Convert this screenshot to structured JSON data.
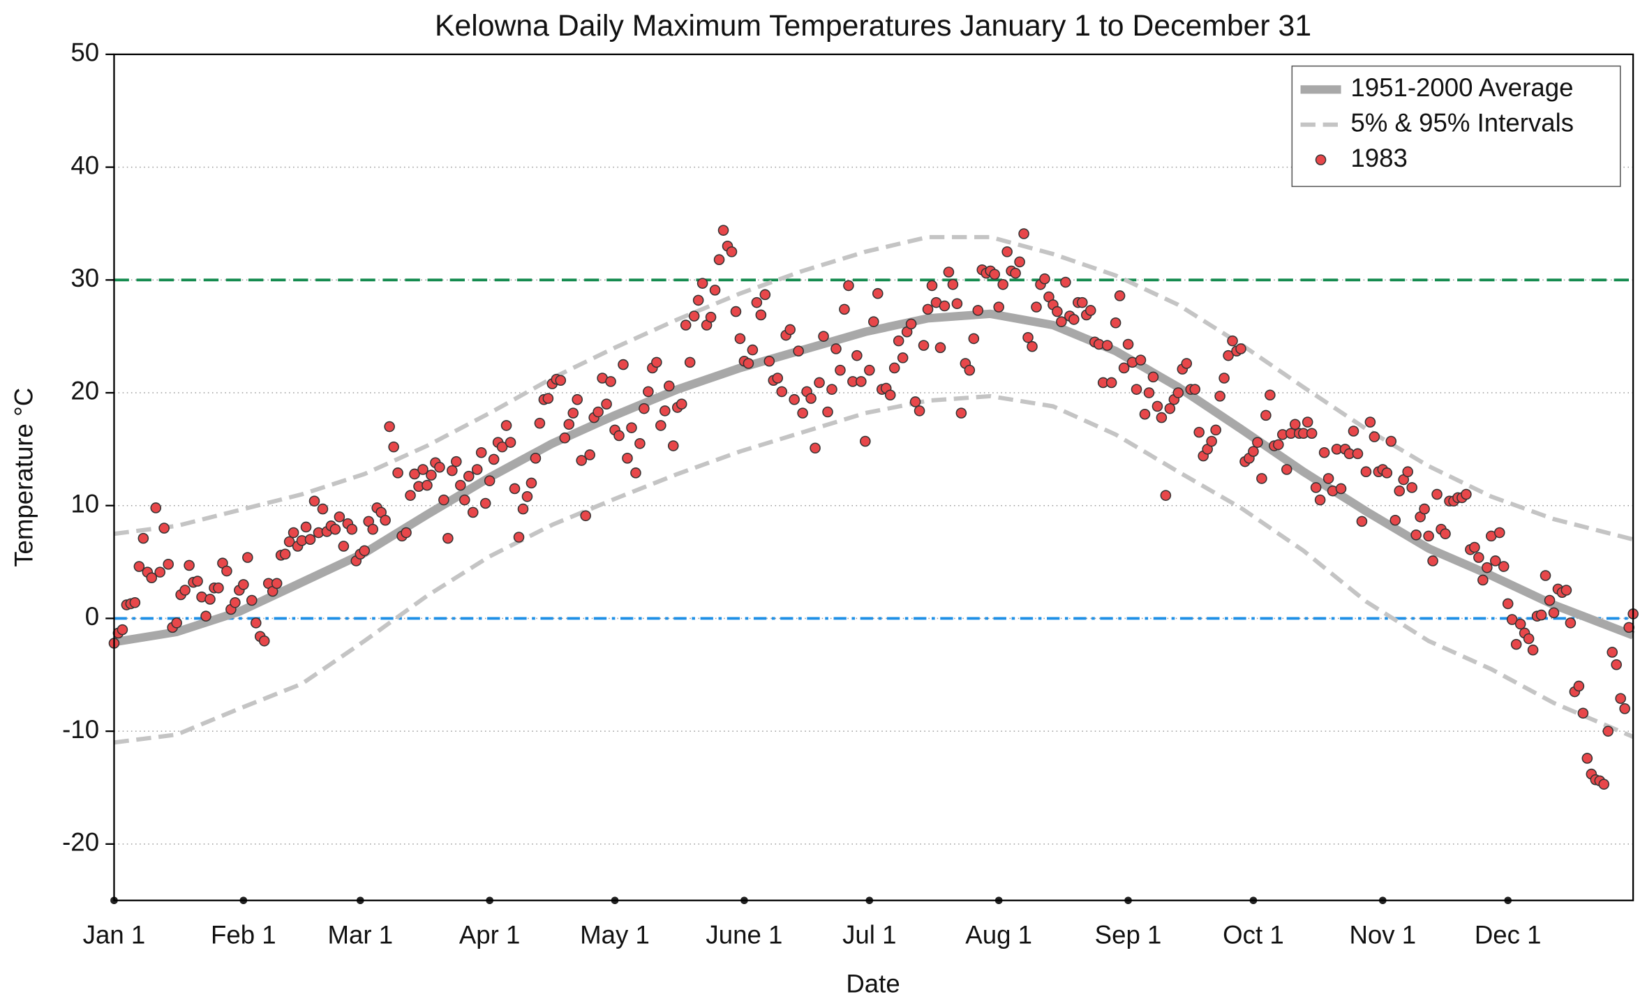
{
  "chart_data": {
    "type": "line",
    "title": "Kelowna Daily Maximum Temperatures January 1 to December 31",
    "xlabel": "Date",
    "ylabel": "Temperature °C",
    "xlim": [
      1,
      365
    ],
    "ylim": [
      -25,
      50
    ],
    "xticks": [
      {
        "value": 1,
        "label": "Jan 1"
      },
      {
        "value": 32,
        "label": "Feb 1"
      },
      {
        "value": 60,
        "label": "Mar 1"
      },
      {
        "value": 91,
        "label": "Apr 1"
      },
      {
        "value": 121,
        "label": "May 1"
      },
      {
        "value": 152,
        "label": "June 1"
      },
      {
        "value": 182,
        "label": "Jul 1"
      },
      {
        "value": 213,
        "label": "Aug 1"
      },
      {
        "value": 244,
        "label": "Sep 1"
      },
      {
        "value": 274,
        "label": "Oct 1"
      },
      {
        "value": 305,
        "label": "Nov 1"
      },
      {
        "value": 335,
        "label": "Dec 1"
      }
    ],
    "yticks": [
      -20,
      -10,
      0,
      10,
      20,
      30,
      40,
      50
    ],
    "grid": true,
    "legend": "upper right",
    "hlines": [
      {
        "value": 30,
        "color": "#138a4e",
        "style": "dashed"
      },
      {
        "value": 0,
        "color": "#1e8fe6",
        "style": "dashdot"
      }
    ],
    "series": [
      {
        "name": "1951-2000 Average",
        "color": "#a8a8a8",
        "style": "solid",
        "x": [
          1,
          16,
          31,
          46,
          61,
          76,
          91,
          106,
          121,
          136,
          151,
          166,
          181,
          196,
          211,
          226,
          241,
          256,
          271,
          286,
          301,
          316,
          331,
          346,
          365
        ],
        "values": [
          -2.1,
          -1.2,
          0.6,
          3.2,
          5.8,
          9.2,
          12.5,
          15.5,
          18,
          20.3,
          22.2,
          23.8,
          25.4,
          26.6,
          27,
          26,
          23.7,
          20.5,
          16.8,
          13,
          9.5,
          6.2,
          3.8,
          1.2,
          -1.5
        ]
      },
      {
        "name": "5% & 95% Intervals",
        "color": "#c4c4c4",
        "style": "dashed",
        "x": [
          1,
          16,
          31,
          46,
          61,
          76,
          91,
          106,
          121,
          136,
          151,
          166,
          181,
          196,
          211,
          226,
          241,
          256,
          271,
          286,
          301,
          316,
          331,
          346,
          365
        ],
        "values": [
          7.5,
          8.2,
          9.6,
          11,
          12.8,
          15.3,
          18.2,
          21.3,
          24,
          26.5,
          28.8,
          30.8,
          32.5,
          33.8,
          33.8,
          32.3,
          30.4,
          27.8,
          24.3,
          20.5,
          16.8,
          13.5,
          10.8,
          8.8,
          7
        ]
      },
      {
        "color": "#c4c4c4",
        "style": "dashed",
        "x": [
          1,
          16,
          31,
          46,
          61,
          76,
          91,
          106,
          121,
          136,
          151,
          166,
          181,
          196,
          211,
          226,
          241,
          256,
          271,
          286,
          301,
          316,
          331,
          346,
          365
        ],
        "values": [
          -11,
          -10.3,
          -8,
          -5.8,
          -2,
          2,
          5.5,
          8.3,
          10.6,
          12.8,
          14.8,
          16.5,
          18.2,
          19.3,
          19.7,
          18.8,
          16.3,
          13,
          9.8,
          6,
          1.5,
          -2,
          -4.5,
          -7.5,
          -10.5
        ]
      },
      {
        "name": "1983",
        "color": "#e8474a",
        "style": "markers",
        "x": [
          1,
          2,
          3,
          4,
          5,
          6,
          7,
          8,
          9,
          10,
          11,
          12,
          13,
          14,
          15,
          16,
          17,
          18,
          19,
          20,
          21,
          22,
          23,
          24,
          25,
          26,
          27,
          28,
          29,
          30,
          31,
          32,
          33,
          34,
          35,
          36,
          37,
          38,
          39,
          40,
          41,
          42,
          43,
          44,
          45,
          46,
          47,
          48,
          49,
          50,
          51,
          52,
          53,
          54,
          55,
          56,
          57,
          58,
          59,
          60,
          61,
          62,
          63,
          64,
          65,
          66,
          67,
          68,
          69,
          70,
          71,
          72,
          73,
          74,
          75,
          76,
          77,
          78,
          79,
          80,
          81,
          82,
          83,
          84,
          85,
          86,
          87,
          88,
          89,
          90,
          91,
          92,
          93,
          94,
          95,
          96,
          97,
          98,
          99,
          100,
          101,
          102,
          103,
          104,
          105,
          106,
          107,
          108,
          109,
          110,
          111,
          112,
          113,
          114,
          115,
          116,
          117,
          118,
          119,
          120,
          121,
          122,
          123,
          124,
          125,
          126,
          127,
          128,
          129,
          130,
          131,
          132,
          133,
          134,
          135,
          136,
          137,
          138,
          139,
          140,
          141,
          142,
          143,
          144,
          145,
          146,
          147,
          148,
          149,
          150,
          151,
          152,
          153,
          154,
          155,
          156,
          157,
          158,
          159,
          160,
          161,
          162,
          163,
          164,
          165,
          166,
          167,
          168,
          169,
          170,
          171,
          172,
          173,
          174,
          175,
          176,
          177,
          178,
          179,
          180,
          181,
          182,
          183,
          184,
          185,
          186,
          187,
          188,
          189,
          190,
          191,
          192,
          193,
          194,
          195,
          196,
          197,
          198,
          199,
          200,
          201,
          202,
          203,
          204,
          205,
          206,
          207,
          208,
          209,
          210,
          211,
          212,
          213,
          214,
          215,
          216,
          217,
          218,
          219,
          220,
          221,
          222,
          223,
          224,
          225,
          226,
          227,
          228,
          229,
          230,
          231,
          232,
          233,
          234,
          235,
          236,
          237,
          238,
          239,
          240,
          241,
          242,
          243,
          244,
          245,
          246,
          247,
          248,
          249,
          250,
          251,
          252,
          253,
          254,
          255,
          256,
          257,
          258,
          259,
          260,
          261,
          262,
          263,
          264,
          265,
          266,
          267,
          268,
          269,
          270,
          271,
          272,
          273,
          274,
          275,
          276,
          277,
          278,
          279,
          280,
          281,
          282,
          283,
          284,
          285,
          286,
          287,
          288,
          289,
          290,
          291,
          292,
          293,
          294,
          295,
          296,
          297,
          298,
          299,
          300,
          301,
          302,
          303,
          304,
          305,
          306,
          307,
          308,
          309,
          310,
          311,
          312,
          313,
          314,
          315,
          316,
          317,
          318,
          319,
          320,
          321,
          322,
          323,
          324,
          325,
          326,
          327,
          328,
          329,
          330,
          331,
          332,
          333,
          334,
          335,
          336,
          337,
          338,
          339,
          340,
          341,
          342,
          343,
          344,
          345,
          346,
          347,
          348,
          349,
          350,
          351,
          352,
          353,
          354,
          355,
          356,
          357,
          358,
          359,
          360,
          361,
          362,
          363,
          364,
          365
        ],
        "values": [
          -2.2,
          -1.3,
          -1,
          1.2,
          1.3,
          1.4,
          4.6,
          7.1,
          4.1,
          3.6,
          9.8,
          4.1,
          8,
          4.8,
          -0.8,
          -0.4,
          2.1,
          2.5,
          4.7,
          3.2,
          3.3,
          1.9,
          0.2,
          1.7,
          2.7,
          2.7,
          4.9,
          4.2,
          0.8,
          1.4,
          2.5,
          3,
          5.4,
          1.6,
          -0.4,
          -1.6,
          -2,
          3.1,
          2.4,
          3.1,
          5.6,
          5.7,
          6.8,
          7.6,
          6.4,
          6.9,
          8.1,
          7,
          10.4,
          7.6,
          9.7,
          7.7,
          8.2,
          7.9,
          9,
          6.4,
          8.4,
          7.9,
          5.1,
          5.7,
          6,
          8.6,
          7.9,
          9.8,
          9.4,
          8.7,
          17,
          15.2,
          12.9,
          7.3,
          7.6,
          10.9,
          12.8,
          11.7,
          13.2,
          11.8,
          12.7,
          13.8,
          13.4,
          10.5,
          7.1,
          13.1,
          13.9,
          11.8,
          10.5,
          12.6,
          9.4,
          13.2,
          14.7,
          10.2,
          12.2,
          14.1,
          15.6,
          15.2,
          17.1,
          15.6,
          11.5,
          7.2,
          9.7,
          10.8,
          12,
          14.2,
          17.3,
          19.4,
          19.5,
          20.8,
          21.2,
          21.1,
          16,
          17.2,
          18.2,
          19.4,
          14,
          9.1,
          14.5,
          17.8,
          18.3,
          21.3,
          19,
          21,
          16.7,
          16.2,
          22.5,
          14.2,
          16.9,
          12.9,
          15.5,
          18.6,
          20.1,
          22.2,
          22.7,
          17.1,
          18.4,
          20.6,
          15.3,
          18.7,
          19,
          26,
          22.7,
          26.8,
          28.2,
          29.7,
          26,
          26.7,
          29.1,
          31.8,
          34.4,
          33,
          32.5,
          27.2,
          24.8,
          22.8,
          22.6,
          23.8,
          28,
          26.9,
          28.7,
          22.8,
          21.1,
          21.3,
          20.1,
          25.1,
          25.6,
          19.4,
          23.7,
          18.2,
          20.1,
          19.5,
          15.1,
          20.9,
          25,
          18.3,
          20.3,
          23.9,
          22,
          27.4,
          29.5,
          21,
          23.3,
          21,
          15.7,
          22,
          26.3,
          28.8,
          20.3,
          20.4,
          19.8,
          22.2,
          24.6,
          23.1,
          25.4,
          26.1,
          19.2,
          18.4,
          24.2,
          27.4,
          29.5,
          28,
          24,
          27.7,
          30.7,
          29.6,
          27.9,
          18.2,
          22.6,
          22,
          24.8,
          27.3,
          30.9,
          30.6,
          30.8,
          30.5,
          27.6,
          29.6,
          32.5,
          30.8,
          30.6,
          31.6,
          34.1,
          24.9,
          24.1,
          27.6,
          29.6,
          30.1,
          28.5,
          27.8,
          27.2,
          26.3,
          29.8,
          26.8,
          26.5,
          28,
          28,
          26.9,
          27.3,
          24.5,
          24.3,
          20.9,
          24.2,
          20.9,
          26.2,
          28.6,
          22.2,
          24.3,
          22.7,
          20.3,
          22.9,
          18.1,
          20,
          21.4,
          18.8,
          17.8,
          10.9,
          18.6,
          19.4,
          20,
          22.1,
          22.6,
          20.3,
          20.3,
          16.5,
          14.4,
          15,
          15.7,
          16.7,
          19.7,
          21.3,
          23.3,
          24.6,
          23.7,
          23.9,
          13.9,
          14.2,
          14.8,
          15.6,
          12.4,
          18,
          19.8,
          15.3,
          15.4,
          16.3,
          13.2,
          16.4,
          17.2,
          16.4,
          16.4,
          17.4,
          16.4,
          11.6,
          10.5,
          14.7,
          12.4,
          11.3,
          15,
          11.5,
          15,
          14.6,
          16.6,
          14.6,
          8.6,
          13,
          17.4,
          16.1,
          13,
          13.2,
          12.9,
          15.7,
          8.7,
          11.3,
          12.3,
          13,
          11.6,
          7.4,
          9,
          9.7,
          7.3,
          5.1,
          11,
          7.9,
          7.5,
          10.4,
          10.4,
          10.7,
          10.7,
          11,
          6.1,
          6.3,
          5.4,
          3.4,
          4.5,
          7.3,
          5.1,
          7.6,
          4.6,
          1.3,
          -0.1,
          -2.3,
          -0.5,
          -1.3,
          -1.8,
          -2.8,
          0.2,
          0.3,
          3.8,
          1.6,
          0.5,
          2.6,
          2.3,
          2.5,
          -0.4,
          -6.5,
          -6,
          -8.4,
          -12.4,
          -13.8,
          -14.3,
          -14.4,
          -14.7,
          -10,
          -3,
          -4.1,
          -7.1,
          -8,
          -0.8,
          0.4
        ]
      }
    ]
  }
}
